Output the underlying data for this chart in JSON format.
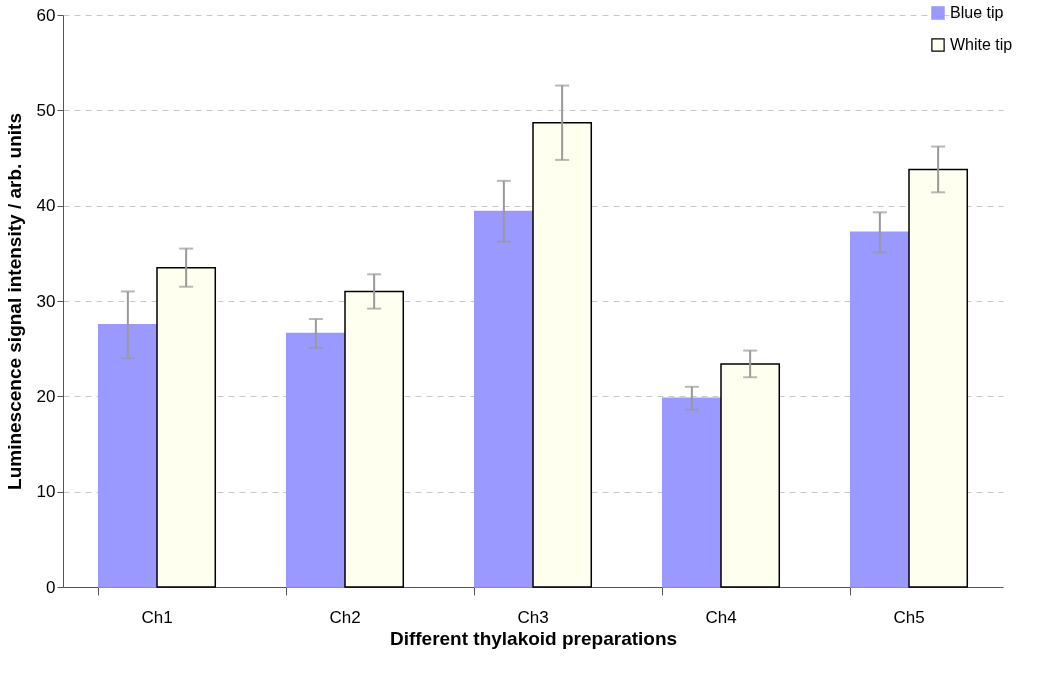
{
  "chart_data": {
    "type": "bar",
    "xlabel": "Different thylakoid preparations",
    "ylabel": "Luminescence signal intensity / arb. units",
    "categories": [
      "Ch1",
      "Ch2",
      "Ch3",
      "Ch4",
      "Ch5"
    ],
    "series": [
      {
        "name": "Blue tip",
        "color": "#9999ff",
        "values": [
          27.5,
          26.6,
          39.4,
          19.8,
          37.2
        ],
        "errors": [
          3.5,
          1.5,
          3.2,
          1.2,
          2.1
        ]
      },
      {
        "name": "White tip",
        "color": "#fffff0",
        "values": [
          33.5,
          31.0,
          48.7,
          23.4,
          43.8
        ],
        "errors": [
          2.0,
          1.8,
          3.9,
          1.4,
          2.4
        ]
      }
    ],
    "ylim": [
      0,
      60
    ],
    "yticks": [
      0,
      10,
      20,
      30,
      40,
      50,
      60
    ],
    "grid": "y",
    "legend": "top right"
  }
}
